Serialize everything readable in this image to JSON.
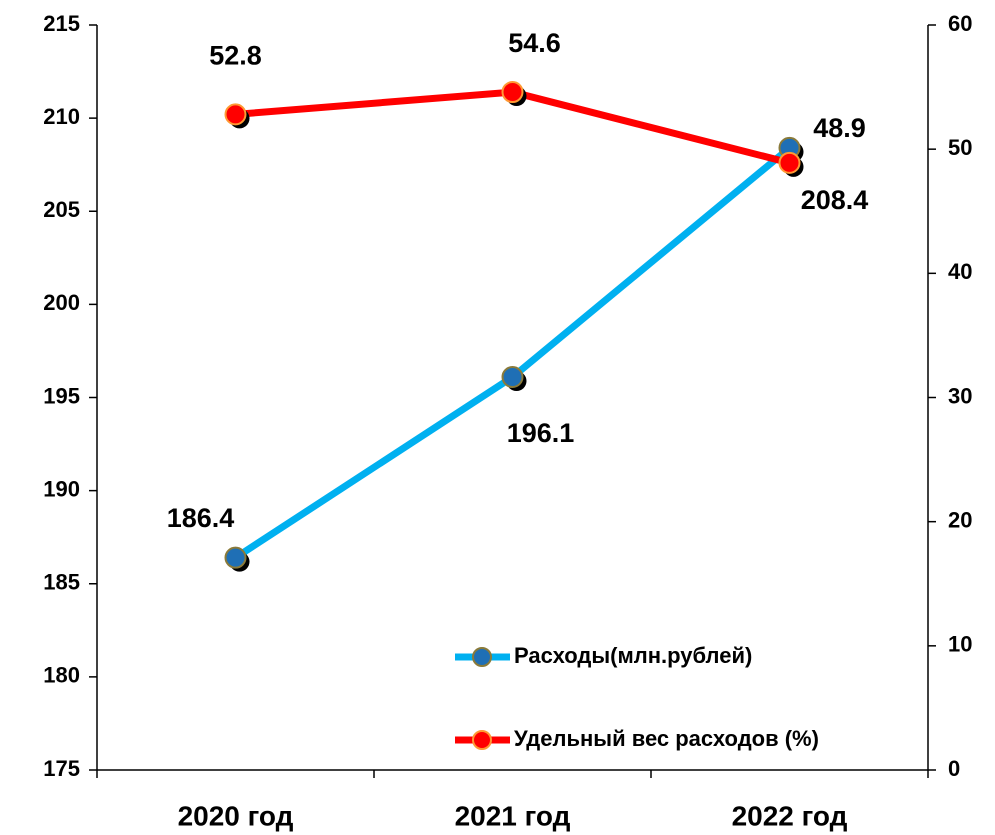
{
  "chart_data": {
    "type": "line",
    "categories": [
      "2020 год",
      "2021 год",
      "2022 год"
    ],
    "series": [
      {
        "name": "Расходы(млн.рублей)",
        "color": "#00b0f0",
        "marker_color": "#1f6fb5",
        "values": [
          186.4,
          196.1,
          208.4
        ],
        "axis": "y"
      },
      {
        "name": "Удельный вес расходов (%)",
        "color": "#ff0000",
        "marker_color": "#ff0000",
        "values": [
          52.8,
          54.6,
          48.9
        ],
        "axis": "y2"
      }
    ],
    "ylim": [
      175,
      215
    ],
    "yticks": [
      175,
      180,
      185,
      190,
      195,
      200,
      205,
      210,
      215
    ],
    "y2lim": [
      0,
      60
    ],
    "y2ticks": [
      0,
      10,
      20,
      30,
      40,
      50,
      60
    ],
    "grid": false,
    "legend": "lower right"
  }
}
